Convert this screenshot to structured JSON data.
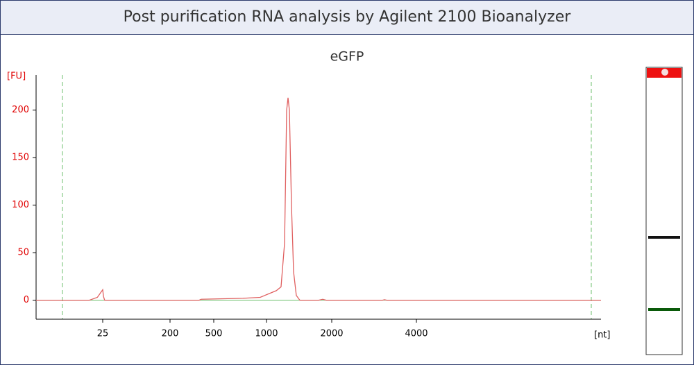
{
  "header": {
    "title": "Post purification RNA analysis by Agilent 2100 Bioanalyzer"
  },
  "chart_data": {
    "type": "line",
    "title": "eGFP",
    "y_label": "[FU]",
    "x_label": "[nt]",
    "x": [
      0,
      20,
      23,
      25,
      27,
      30,
      400,
      414,
      776,
      940,
      1079,
      1150,
      1223,
      1277,
      1309,
      1330,
      1351,
      1383,
      1415,
      1457,
      1511,
      1800,
      1862,
      1915,
      3200,
      3246,
      3300,
      6000
    ],
    "values": [
      0,
      0,
      3,
      11,
      4,
      0,
      0,
      1,
      2,
      3,
      8,
      10,
      14,
      60,
      200,
      213,
      200,
      100,
      30,
      5,
      0,
      0,
      1,
      0,
      0,
      0.5,
      0,
      0
    ],
    "color": "#e06060",
    "xlim": [
      0,
      6000
    ],
    "xticks": [
      25,
      200,
      500,
      1000,
      2000,
      4000
    ],
    "ylim": [
      -20,
      237
    ],
    "yticks": [
      0,
      50,
      100,
      150,
      200
    ]
  }
}
